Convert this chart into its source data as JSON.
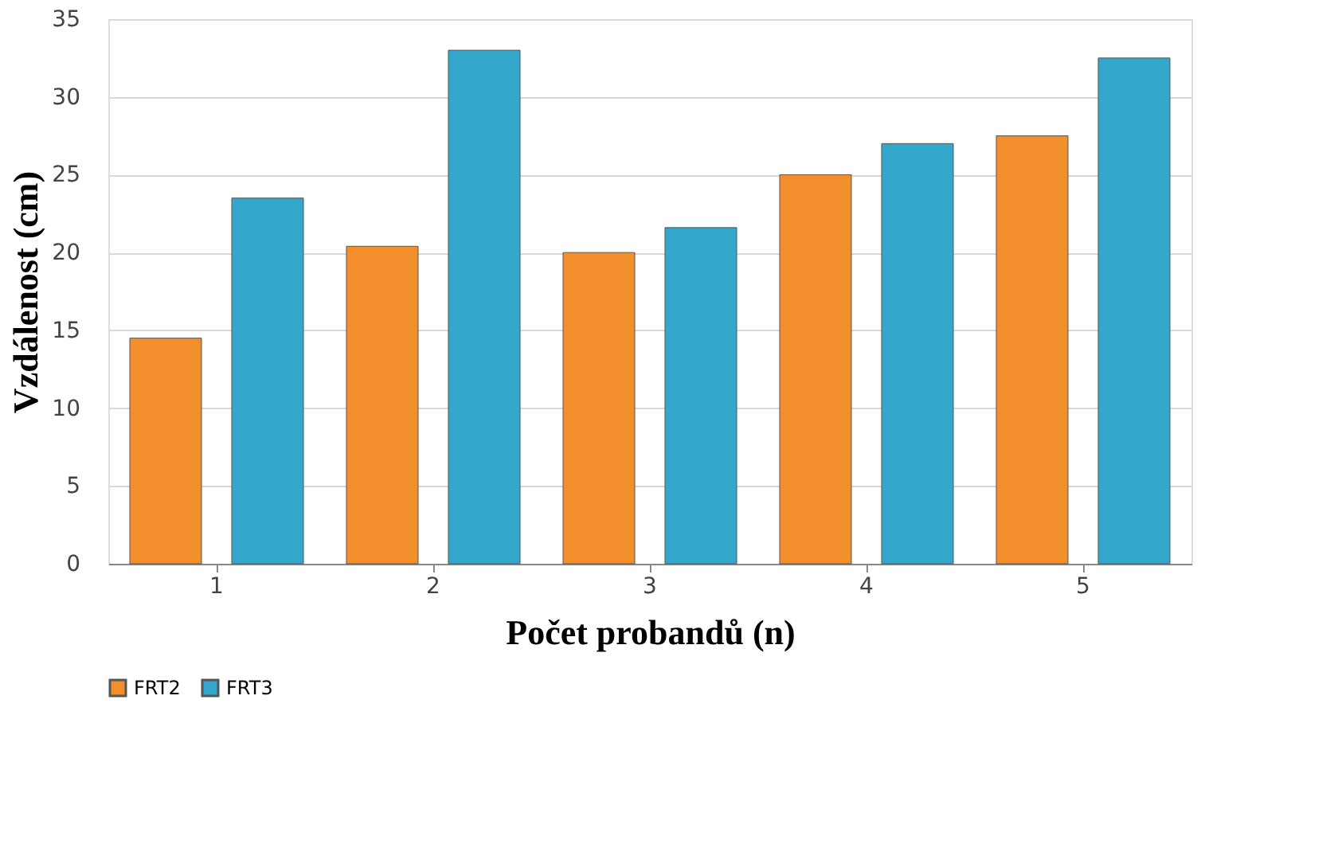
{
  "chart_data": {
    "type": "bar",
    "xlabel": "Počet probandů (n)",
    "ylabel": "Vzdálenost (cm)",
    "categories": [
      "1",
      "2",
      "3",
      "4",
      "5"
    ],
    "series": [
      {
        "name": "FRT2",
        "color": "#f28e2b",
        "values": [
          14.5,
          20.4,
          20,
          25,
          27.5
        ]
      },
      {
        "name": "FRT3",
        "color": "#33a8cc",
        "values": [
          23.5,
          33,
          21.6,
          27,
          32.5
        ]
      }
    ],
    "ylim": [
      0,
      35
    ],
    "yticks": [
      0,
      5,
      10,
      15,
      20,
      25,
      30,
      35
    ],
    "grid": "y",
    "legend": "bottom"
  }
}
